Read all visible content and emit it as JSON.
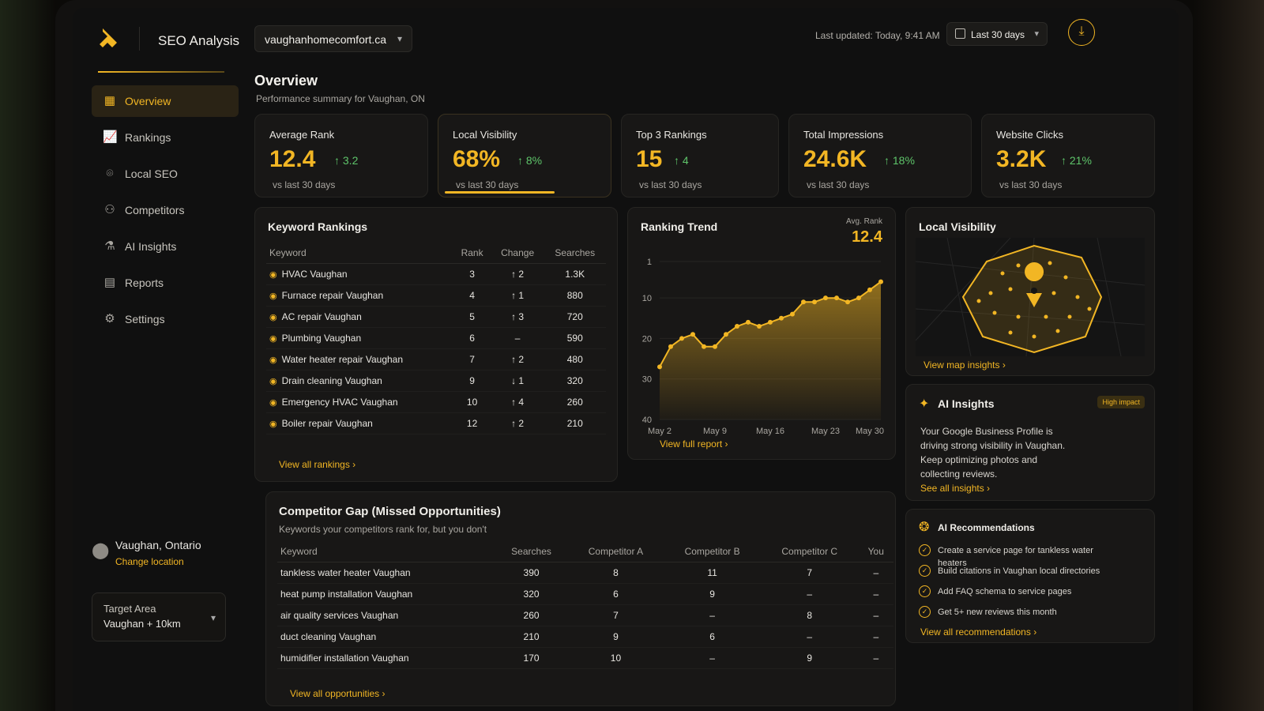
{
  "app": {
    "title": "SEO Analysis",
    "domain": "vaughanhomecomfort.ca"
  },
  "header": {
    "last_updated": "Last updated: Today, 9:41 AM",
    "range": "Last 30 days"
  },
  "sidebar": {
    "items": [
      {
        "label": "Overview",
        "icon": "grid-icon",
        "active": true
      },
      {
        "label": "Rankings",
        "icon": "chart-icon"
      },
      {
        "label": "Local SEO",
        "icon": "map-pin-icon"
      },
      {
        "label": "Competitors",
        "icon": "users-icon"
      },
      {
        "label": "AI Insights",
        "icon": "flask-icon"
      },
      {
        "label": "Reports",
        "icon": "report-icon"
      },
      {
        "label": "Settings",
        "icon": "gear-icon"
      }
    ],
    "location": {
      "name": "Vaughan, Ontario",
      "change_label": "Change location"
    },
    "target_area": {
      "label": "Target Area",
      "value": "Vaughan + 10km"
    }
  },
  "overview": {
    "title": "Overview",
    "subtitle": "Performance summary for Vaughan, ON"
  },
  "kpis": [
    {
      "label": "Average Rank",
      "value": "12.4",
      "delta": "↑ 3.2",
      "sub": "vs last 30 days"
    },
    {
      "label": "Local Visibility",
      "value": "68%",
      "delta": "↑ 8%",
      "sub": "vs last 30 days",
      "progress": 0.68
    },
    {
      "label": "Top 3 Rankings",
      "value": "15",
      "delta": "↑ 4",
      "sub": "vs last 30 days"
    },
    {
      "label": "Total Impressions",
      "value": "24.6K",
      "delta": "↑ 18%",
      "sub": "vs last 30 days"
    },
    {
      "label": "Website Clicks",
      "value": "3.2K",
      "delta": "↑ 21%",
      "sub": "vs last 30 days"
    }
  ],
  "keyword_rankings": {
    "title": "Keyword Rankings",
    "columns": [
      "Keyword",
      "Rank",
      "Change",
      "Searches"
    ],
    "rows": [
      {
        "keyword": "HVAC Vaughan",
        "rank": "3",
        "change": "↑ 2",
        "dir": "up",
        "searches": "1.3K"
      },
      {
        "keyword": "Furnace repair Vaughan",
        "rank": "4",
        "change": "↑ 1",
        "dir": "up",
        "searches": "880"
      },
      {
        "keyword": "AC repair Vaughan",
        "rank": "5",
        "change": "↑ 3",
        "dir": "up",
        "searches": "720"
      },
      {
        "keyword": "Plumbing Vaughan",
        "rank": "6",
        "change": "–",
        "dir": "flat",
        "searches": "590"
      },
      {
        "keyword": "Water heater repair Vaughan",
        "rank": "7",
        "change": "↑ 2",
        "dir": "up",
        "searches": "480"
      },
      {
        "keyword": "Drain cleaning Vaughan",
        "rank": "9",
        "change": "↓ 1",
        "dir": "down",
        "searches": "320"
      },
      {
        "keyword": "Emergency HVAC Vaughan",
        "rank": "10",
        "change": "↑ 4",
        "dir": "up",
        "searches": "260"
      },
      {
        "keyword": "Boiler repair Vaughan",
        "rank": "12",
        "change": "↑ 2",
        "dir": "up",
        "searches": "210"
      }
    ],
    "link": "View all rankings"
  },
  "ranking_trend": {
    "title": "Ranking Trend",
    "avg_label": "Avg. Rank",
    "avg_value": "12.4",
    "link": "View full report"
  },
  "chart_data": {
    "type": "area",
    "x": [
      "May 2",
      "May 3",
      "May 5",
      "May 7",
      "May 8",
      "May 9",
      "May 11",
      "May 12",
      "May 14",
      "May 15",
      "May 16",
      "May 18",
      "May 19",
      "May 21",
      "May 22",
      "May 23",
      "May 25",
      "May 27",
      "May 29",
      "May 30",
      "May 31"
    ],
    "xticks": [
      "May 2",
      "May 9",
      "May 16",
      "May 23",
      "May 30"
    ],
    "values": [
      27,
      22,
      20,
      19,
      22,
      22,
      19,
      17,
      16,
      17,
      16,
      15,
      14,
      11,
      11,
      10,
      10,
      11,
      10,
      8,
      6
    ],
    "yticks": [
      1,
      10,
      20,
      30,
      40
    ],
    "ylim": [
      1,
      40
    ],
    "y_inverted": true,
    "series_color": "#f2b624"
  },
  "local_visibility": {
    "title": "Local Visibility",
    "link": "View map insights"
  },
  "ai_insights": {
    "title": "AI Insights",
    "badge": "High impact",
    "text": "Your Google Business Profile is driving strong visibility in Vaughan. Keep optimizing photos and collecting reviews.",
    "link": "See all insights"
  },
  "competitor_gap": {
    "title": "Competitor Gap (Missed Opportunities)",
    "subtitle": "Keywords your competitors rank for, but you don't",
    "columns": [
      "Keyword",
      "Searches",
      "Competitor A",
      "Competitor B",
      "Competitor C",
      "You"
    ],
    "rows": [
      [
        "tankless water heater Vaughan",
        "390",
        "8",
        "11",
        "7",
        "–"
      ],
      [
        "heat pump installation Vaughan",
        "320",
        "6",
        "9",
        "–",
        "–"
      ],
      [
        "air quality services Vaughan",
        "260",
        "7",
        "–",
        "8",
        "–"
      ],
      [
        "duct cleaning Vaughan",
        "210",
        "9",
        "6",
        "–",
        "–"
      ],
      [
        "humidifier installation Vaughan",
        "170",
        "10",
        "–",
        "9",
        "–"
      ]
    ],
    "link": "View all opportunities"
  },
  "ai_recommendations": {
    "title": "AI Recommendations",
    "items": [
      "Create a service page for tankless water heaters",
      "Build citations in Vaughan local directories",
      "Add FAQ schema to service pages",
      "Get 5+ new reviews this month"
    ],
    "link": "View all recommendations"
  },
  "colors": {
    "accent": "#f2b624",
    "up": "#5ec46a",
    "down": "#e5484d",
    "background": "#101010"
  }
}
